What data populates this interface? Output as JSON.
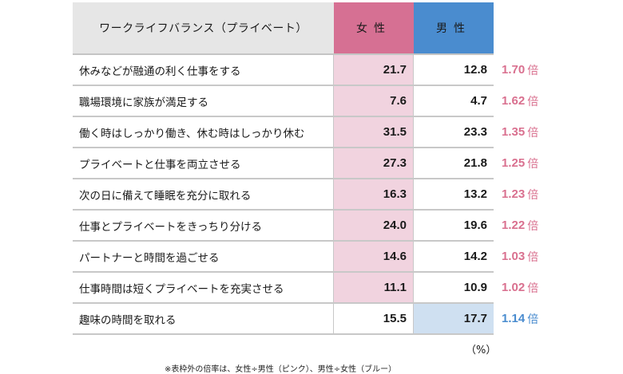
{
  "header": {
    "label": "ワークライフバランス（プライベート）",
    "female": "女性",
    "male": "男性"
  },
  "colors": {
    "female_header": "#d67093",
    "male_header": "#4a8ccf",
    "female_highlight": "#f1d3df",
    "male_highlight": "#cfe0f1",
    "ratio_pink": "#d9708f",
    "ratio_blue": "#4a8ccf",
    "label_header_bg": "#e6e6e6"
  },
  "rows": [
    {
      "label": "休みなどが融通の利く仕事をする",
      "female": "21.7",
      "male": "12.8",
      "ratio": "1.70",
      "unit": "倍",
      "highlight": "female"
    },
    {
      "label": "職場環境に家族が満足する",
      "female": "7.6",
      "male": "4.7",
      "ratio": "1.62",
      "unit": "倍",
      "highlight": "female"
    },
    {
      "label": "働く時はしっかり働き、休む時はしっかり休む",
      "female": "31.5",
      "male": "23.3",
      "ratio": "1.35",
      "unit": "倍",
      "highlight": "female"
    },
    {
      "label": "プライベートと仕事を両立させる",
      "female": "27.3",
      "male": "21.8",
      "ratio": "1.25",
      "unit": "倍",
      "highlight": "female"
    },
    {
      "label": "次の日に備えて睡眠を充分に取れる",
      "female": "16.3",
      "male": "13.2",
      "ratio": "1.23",
      "unit": "倍",
      "highlight": "female"
    },
    {
      "label": "仕事とプライベートをきっちり分ける",
      "female": "24.0",
      "male": "19.6",
      "ratio": "1.22",
      "unit": "倍",
      "highlight": "female"
    },
    {
      "label": "パートナーと時間を過ごせる",
      "female": "14.6",
      "male": "14.2",
      "ratio": "1.03",
      "unit": "倍",
      "highlight": "female"
    },
    {
      "label": "仕事時間は短くプライベートを充実させる",
      "female": "11.1",
      "male": "10.9",
      "ratio": "1.02",
      "unit": "倍",
      "highlight": "female"
    },
    {
      "label": "趣味の時間を取れる",
      "female": "15.5",
      "male": "17.7",
      "ratio": "1.14",
      "unit": "倍",
      "highlight": "male"
    }
  ],
  "unit_label": "（%）",
  "footnote": "※表枠外の倍率は、女性÷男性（ピンク）、男性÷女性（ブルー）",
  "chart_data": {
    "type": "table",
    "title": "ワークライフバランス（プライベート）",
    "columns": [
      "ワークライフバランス（プライベート）",
      "女性",
      "男性",
      "倍率"
    ],
    "categories": [
      "休みなどが融通の利く仕事をする",
      "職場環境に家族が満足する",
      "働く時はしっかり働き、休む時はしっかり休む",
      "プライベートと仕事を両立させる",
      "次の日に備えて睡眠を充分に取れる",
      "仕事とプライベートをきっちり分ける",
      "パートナーと時間を過ごせる",
      "仕事時間は短くプライベートを充実させる",
      "趣味の時間を取れる"
    ],
    "series": [
      {
        "name": "女性",
        "values": [
          21.7,
          7.6,
          31.5,
          27.3,
          16.3,
          24.0,
          14.6,
          11.1,
          15.5
        ]
      },
      {
        "name": "男性",
        "values": [
          12.8,
          4.7,
          23.3,
          21.8,
          13.2,
          19.6,
          14.2,
          10.9,
          17.7
        ]
      },
      {
        "name": "倍率",
        "values": [
          1.7,
          1.62,
          1.35,
          1.25,
          1.23,
          1.22,
          1.03,
          1.02,
          1.14
        ],
        "colors": [
          "pink",
          "pink",
          "pink",
          "pink",
          "pink",
          "pink",
          "pink",
          "pink",
          "blue"
        ]
      }
    ],
    "unit": "%",
    "annotations": [
      "※表枠外の倍率は、女性÷男性（ピンク）、男性÷女性（ブルー）"
    ]
  }
}
